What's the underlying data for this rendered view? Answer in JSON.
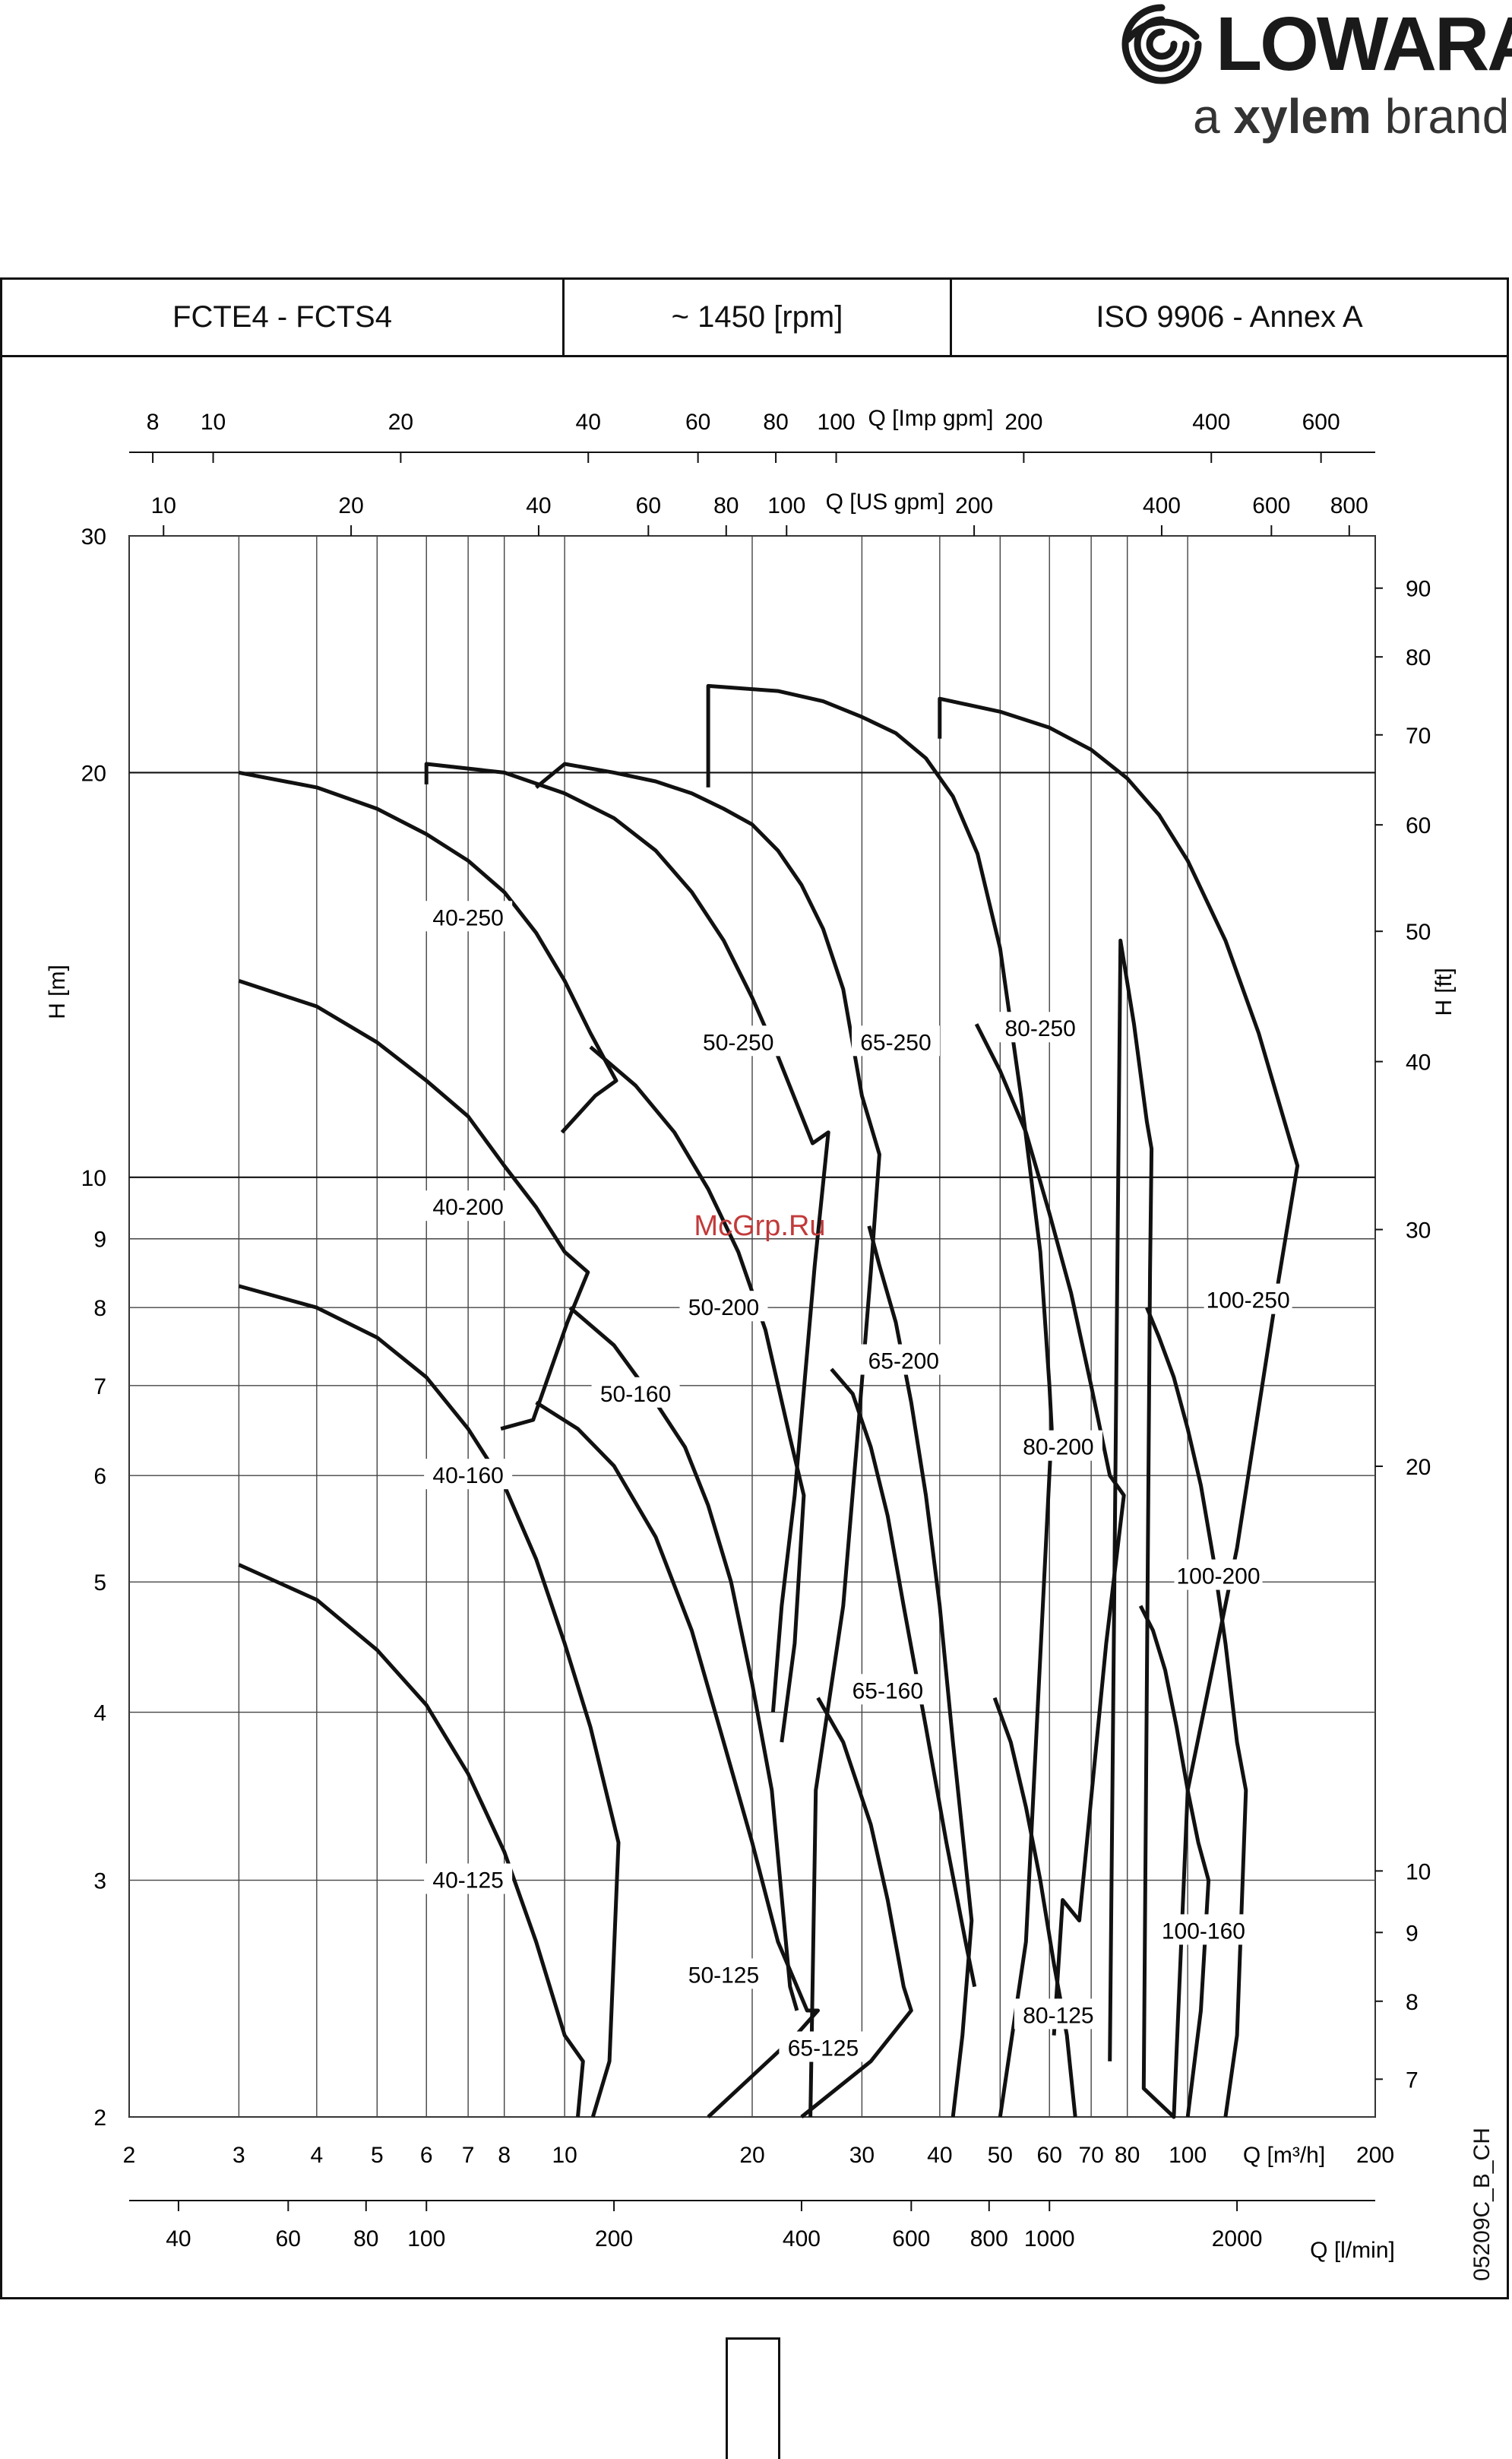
{
  "brand": {
    "name": "LOWARA",
    "tagline_pre": "a ",
    "tagline_bold": "xylem",
    "tagline_post": " brand",
    "logo_icon": "lowara-swirl-icon"
  },
  "header": {
    "model": "FCTE4 - FCTS4",
    "speed": "~ 1450 [rpm]",
    "standard": "ISO 9906 - Annex A"
  },
  "watermark": "McGrp.Ru",
  "drawing_code": "05209C_B_CH",
  "chart_data": {
    "type": "line",
    "scale": "log-log",
    "xlabel": "Q [m³/h]",
    "ylabel": "H [m]",
    "ylabel_right": "H [ft]",
    "xlim": [
      2,
      200
    ],
    "ylim": [
      2,
      30
    ],
    "x_ticks": [
      2,
      3,
      4,
      5,
      6,
      7,
      8,
      10,
      20,
      30,
      40,
      50,
      60,
      70,
      80,
      100,
      200
    ],
    "y_ticks": [
      2,
      3,
      4,
      5,
      6,
      7,
      8,
      9,
      10,
      20,
      30
    ],
    "ft_ticks": [
      7,
      8,
      9,
      10,
      20,
      30,
      40,
      50,
      60,
      70,
      80,
      90
    ],
    "lmin_ticks": [
      40,
      60,
      80,
      100,
      200,
      400,
      600,
      800,
      1000,
      2000
    ],
    "lmin_label": "Q [l/min]",
    "usgpm_ticks": [
      10,
      20,
      40,
      60,
      80,
      100,
      200,
      400,
      600,
      800
    ],
    "usgpm_label": "Q [US gpm]",
    "impgpm_ticks": [
      8,
      10,
      20,
      40,
      60,
      80,
      100,
      200,
      400,
      600
    ],
    "impgpm_label": "Q [Imp gpm]",
    "grid": true,
    "areas": [
      {
        "name": "40-250",
        "label_at": [
          7,
          15.6
        ],
        "outline": [
          [
            3,
            20
          ],
          [
            4,
            19.5
          ],
          [
            5,
            18.8
          ],
          [
            6,
            18
          ],
          [
            7,
            17.2
          ],
          [
            8,
            16.3
          ],
          [
            9,
            15.2
          ],
          [
            10,
            14
          ],
          [
            11,
            12.8
          ],
          [
            12.1,
            11.8
          ],
          [
            11.2,
            11.5
          ],
          [
            9.9,
            10.8
          ]
        ]
      },
      {
        "name": "40-200",
        "label_at": [
          7,
          9.5
        ],
        "outline": [
          [
            3,
            14
          ],
          [
            4,
            13.4
          ],
          [
            5,
            12.6
          ],
          [
            6,
            11.8
          ],
          [
            7,
            11.1
          ],
          [
            8,
            10.2
          ],
          [
            9,
            9.5
          ],
          [
            10,
            8.8
          ],
          [
            10.9,
            8.5
          ],
          [
            10.1,
            7.8
          ],
          [
            8.9,
            6.6
          ],
          [
            7.9,
            6.5
          ]
        ]
      },
      {
        "name": "40-160",
        "label_at": [
          7,
          6
        ],
        "outline": [
          [
            3,
            8.3
          ],
          [
            4,
            8
          ],
          [
            5,
            7.6
          ],
          [
            6,
            7.1
          ],
          [
            7,
            6.5
          ],
          [
            8,
            5.9
          ],
          [
            9,
            5.2
          ],
          [
            10,
            4.5
          ],
          [
            11,
            3.9
          ],
          [
            12.2,
            3.2
          ],
          [
            11.8,
            2.2
          ],
          [
            11.1,
            2
          ]
        ]
      },
      {
        "name": "40-125",
        "label_at": [
          7,
          3
        ],
        "outline": [
          [
            3,
            5.15
          ],
          [
            4,
            4.85
          ],
          [
            5,
            4.45
          ],
          [
            6,
            4.05
          ],
          [
            7,
            3.6
          ],
          [
            8,
            3.15
          ],
          [
            9,
            2.7
          ],
          [
            10,
            2.3
          ],
          [
            10.7,
            2.2
          ],
          [
            10.5,
            2
          ]
        ]
      },
      {
        "name": "50-250",
        "label_at": [
          19,
          12.6
        ],
        "outline": [
          [
            6,
            19.6
          ],
          [
            6,
            20.3
          ],
          [
            8,
            20
          ],
          [
            10,
            19.3
          ],
          [
            12,
            18.5
          ],
          [
            14,
            17.5
          ],
          [
            16,
            16.3
          ],
          [
            18,
            15
          ],
          [
            20,
            13.6
          ],
          [
            22,
            12.3
          ],
          [
            25,
            10.6
          ],
          [
            26.5,
            10.8
          ],
          [
            25.2,
            8.6
          ],
          [
            23.4,
            5.8
          ],
          [
            22.3,
            4.8
          ],
          [
            21.6,
            4
          ]
        ]
      },
      {
        "name": "50-200",
        "label_at": [
          18,
          8
        ],
        "outline": [
          [
            11,
            12.5
          ],
          [
            13,
            11.7
          ],
          [
            15,
            10.8
          ],
          [
            17,
            9.8
          ],
          [
            19,
            8.8
          ],
          [
            21,
            7.7
          ],
          [
            23,
            6.4
          ],
          [
            24.2,
            5.8
          ],
          [
            23.4,
            4.5
          ],
          [
            22.3,
            3.8
          ]
        ]
      },
      {
        "name": "50-160",
        "label_at": [
          13,
          6.9
        ],
        "outline": [
          [
            10.2,
            8
          ],
          [
            12,
            7.5
          ],
          [
            14,
            6.8
          ],
          [
            15.6,
            6.3
          ],
          [
            17,
            5.7
          ],
          [
            18.5,
            5
          ],
          [
            20,
            4.2
          ],
          [
            21.5,
            3.5
          ],
          [
            23,
            2.5
          ],
          [
            23.6,
            2.4
          ]
        ]
      },
      {
        "name": "50-125",
        "label_at": [
          18,
          2.55
        ],
        "outline": [
          [
            9,
            6.8
          ],
          [
            10.5,
            6.5
          ],
          [
            12,
            6.1
          ],
          [
            14,
            5.4
          ],
          [
            16,
            4.6
          ],
          [
            18,
            3.8
          ],
          [
            20,
            3.2
          ],
          [
            22,
            2.7
          ],
          [
            24.5,
            2.4
          ],
          [
            25.5,
            2.4
          ],
          [
            23.5,
            2.3
          ],
          [
            17,
            2
          ]
        ]
      },
      {
        "name": "65-250",
        "label_at": [
          34,
          12.6
        ],
        "outline": [
          [
            9,
            19.5
          ],
          [
            10,
            20.3
          ],
          [
            12,
            20
          ],
          [
            14,
            19.7
          ],
          [
            16,
            19.3
          ],
          [
            18,
            18.8
          ],
          [
            20,
            18.3
          ],
          [
            22,
            17.5
          ],
          [
            24,
            16.5
          ],
          [
            26,
            15.3
          ],
          [
            28,
            13.8
          ],
          [
            30,
            11.5
          ],
          [
            32,
            10.4
          ],
          [
            31,
            8.5
          ],
          [
            29.5,
            6.4
          ],
          [
            28,
            4.8
          ],
          [
            25.3,
            3.5
          ],
          [
            24.8,
            2
          ]
        ]
      },
      {
        "name": "65-200",
        "label_at": [
          35,
          7.3
        ],
        "outline": [
          [
            30.8,
            9.2
          ],
          [
            32,
            8.6
          ],
          [
            34,
            7.8
          ],
          [
            36,
            6.8
          ],
          [
            38,
            5.8
          ],
          [
            40,
            4.8
          ],
          [
            42,
            3.8
          ],
          [
            45,
            2.8
          ],
          [
            43.5,
            2.3
          ],
          [
            42,
            2
          ]
        ]
      },
      {
        "name": "65-160",
        "label_at": [
          33,
          4.15
        ],
        "outline": [
          [
            26.8,
            7.2
          ],
          [
            29,
            6.9
          ],
          [
            31,
            6.3
          ],
          [
            33,
            5.6
          ],
          [
            35,
            4.8
          ],
          [
            38,
            3.9
          ],
          [
            41,
            3.2
          ],
          [
            44,
            2.7
          ],
          [
            45.5,
            2.5
          ]
        ]
      },
      {
        "name": "65-125",
        "label_at": [
          26,
          2.25
        ],
        "outline": [
          [
            25.5,
            4.1
          ],
          [
            28,
            3.8
          ],
          [
            31,
            3.3
          ],
          [
            33,
            2.9
          ],
          [
            35,
            2.5
          ],
          [
            36,
            2.4
          ],
          [
            31,
            2.2
          ],
          [
            24,
            2
          ]
        ]
      },
      {
        "name": "80-250",
        "label_at": [
          58,
          12.9
        ],
        "outline": [
          [
            17,
            19.5
          ],
          [
            17,
            23.2
          ],
          [
            22,
            23
          ],
          [
            26,
            22.6
          ],
          [
            30,
            22
          ],
          [
            34,
            21.4
          ],
          [
            38,
            20.5
          ],
          [
            42,
            19.2
          ],
          [
            46,
            17.4
          ],
          [
            50,
            14.8
          ],
          [
            54,
            11.5
          ],
          [
            58,
            8.8
          ],
          [
            60,
            7
          ],
          [
            60.5,
            6.5
          ],
          [
            55,
            2.7
          ],
          [
            50,
            2
          ]
        ]
      },
      {
        "name": "80-200",
        "label_at": [
          62,
          6.3
        ],
        "outline": [
          [
            45.8,
            13
          ],
          [
            50,
            12
          ],
          [
            55,
            10.8
          ],
          [
            60,
            9.4
          ],
          [
            65,
            8.2
          ],
          [
            70,
            7
          ],
          [
            75,
            6
          ],
          [
            79,
            5.8
          ],
          [
            74,
            4.5
          ],
          [
            67,
            2.8
          ],
          [
            63,
            2.9
          ],
          [
            61,
            2.3
          ]
        ]
      },
      {
        "name": "80-125",
        "label_at": [
          62,
          2.38
        ],
        "outline": [
          [
            49,
            4.1
          ],
          [
            52,
            3.8
          ],
          [
            55,
            3.4
          ],
          [
            58,
            3
          ],
          [
            61,
            2.6
          ],
          [
            64,
            2.3
          ],
          [
            66,
            2
          ]
        ]
      },
      {
        "name": "100-250",
        "label_at": [
          125,
          8.1
        ],
        "outline": [
          [
            40,
            21.2
          ],
          [
            40,
            22.7
          ],
          [
            50,
            22.2
          ],
          [
            60,
            21.6
          ],
          [
            70,
            20.8
          ],
          [
            80,
            19.8
          ],
          [
            90,
            18.6
          ],
          [
            100,
            17.2
          ],
          [
            115,
            15
          ],
          [
            130,
            12.8
          ],
          [
            150,
            10.2
          ],
          [
            140,
            8.4
          ],
          [
            120,
            5.3
          ],
          [
            100,
            3.5
          ],
          [
            95,
            2
          ],
          [
            85,
            2.1
          ],
          [
            87,
            8.5
          ],
          [
            87.5,
            10.5
          ],
          [
            86,
            11
          ],
          [
            82,
            13
          ],
          [
            78,
            15
          ],
          [
            75,
            2.2
          ]
        ]
      },
      {
        "name": "100-200",
        "label_at": [
          112,
          5.05
        ],
        "outline": [
          [
            86,
            8
          ],
          [
            90,
            7.6
          ],
          [
            95,
            7.1
          ],
          [
            100,
            6.5
          ],
          [
            105,
            5.9
          ],
          [
            110,
            5.2
          ],
          [
            115,
            4.5
          ],
          [
            120,
            3.8
          ],
          [
            124,
            3.5
          ],
          [
            120,
            2.3
          ],
          [
            115,
            2
          ]
        ]
      },
      {
        "name": "100-160",
        "label_at": [
          106,
          2.75
        ],
        "outline": [
          [
            84,
            4.8
          ],
          [
            88,
            4.6
          ],
          [
            92,
            4.3
          ],
          [
            96,
            3.9
          ],
          [
            100,
            3.5
          ],
          [
            104,
            3.2
          ],
          [
            108,
            3
          ],
          [
            105,
            2.4
          ],
          [
            100,
            2
          ]
        ]
      }
    ]
  }
}
